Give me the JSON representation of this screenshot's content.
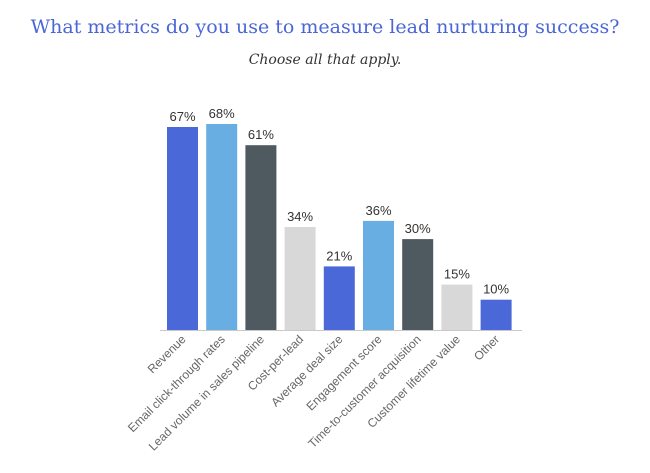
{
  "chart_data": {
    "type": "bar",
    "title": "What metrics do you use to measure lead nurturing success?",
    "subtitle": "Choose all that apply.",
    "categories": [
      "Revenue",
      "Email click-through rates",
      "Lead volume in sales pipeline",
      "Cost-per-lead",
      "Average deal size",
      "Engagement score",
      "Time-to-customer acquisition",
      "Customer lifetime value",
      "Other"
    ],
    "values": [
      67,
      68,
      61,
      34,
      21,
      36,
      30,
      15,
      10
    ],
    "value_labels": [
      "67%",
      "68%",
      "61%",
      "34%",
      "21%",
      "36%",
      "30%",
      "15%",
      "10%"
    ],
    "bar_colors": [
      "#4a68d8",
      "#68aee2",
      "#4f5a60",
      "#d8d8d8",
      "#4a68d8",
      "#68aee2",
      "#4f5a60",
      "#d8d8d8",
      "#4a68d8"
    ],
    "xlabel": "",
    "ylabel": "",
    "ylim": [
      0,
      100
    ],
    "grid": false,
    "legend": "none"
  }
}
